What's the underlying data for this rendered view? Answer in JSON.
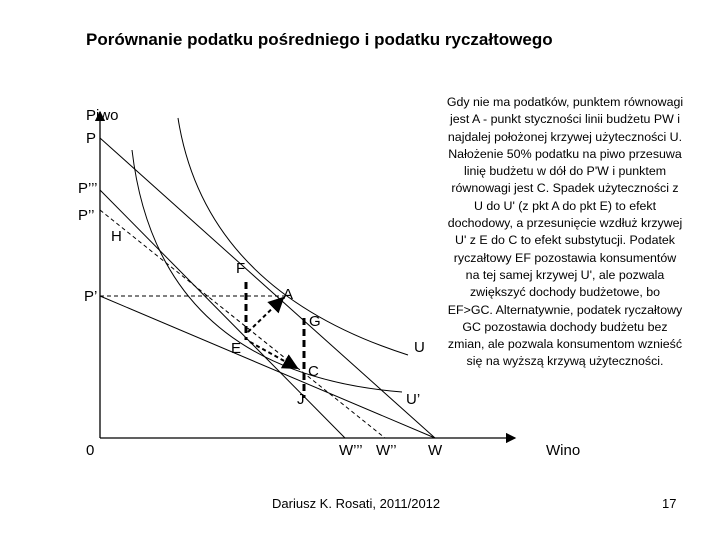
{
  "title": "Porównanie podatku pośredniego i podatku ryczałtowego",
  "description": "Gdy nie ma podatków, punktem równowagi jest A - punkt styczności linii budżetu PW i najdalej położonej krzywej użyteczności U. Nałożenie 50% podatku na piwo przesuwa linię budżetu w dół do P'W i punktem równowagi jest C. Spadek użyteczności z U do U' (z pkt A do pkt E) to efekt dochodowy, a przesunięcie wzdłuż krzywej U' z E do C to efekt substytucji. Podatek ryczałtowy EF pozostawia konsumentów na tej samej krzywej U', ale pozwala zwiększyć dochody budżetowe, bo EF>GC. Alternatywnie, podatek ryczałtowy GC pozostawia dochody budżetu bez zmian, ale pozwala konsumentom wznieść się na wyższą krzywą użyteczności.",
  "footer": "Dariusz K. Rosati, 2011/2012",
  "page_number": "17",
  "axes": {
    "y_label": "Piwo",
    "x_label": "Wino",
    "origin": "0",
    "y_ticks": {
      "p": "P",
      "p3": "P’’’",
      "p2": "P’’",
      "p1": "P’"
    },
    "x_ticks": {
      "w3": "W’’’",
      "w2": "W’’",
      "w": "W"
    }
  },
  "points": {
    "a": "A",
    "c": "C",
    "e": "E",
    "f": "F",
    "g": "G",
    "h": "H",
    "j": "J"
  },
  "curves": {
    "u": "U",
    "u1": "U’"
  }
}
